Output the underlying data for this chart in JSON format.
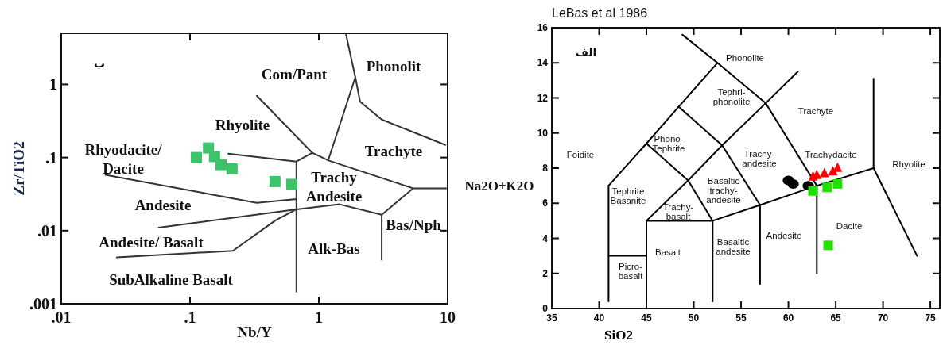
{
  "chart_data": [
    {
      "type": "scatter",
      "xlabel": "Nb/Y",
      "ylabel": "Zr/TiO2",
      "log": "xy",
      "xlim": [
        0.01,
        10
      ],
      "ylim": [
        0.001,
        5
      ],
      "xticks": [
        {
          "value": 0.01,
          "label": ".01"
        },
        {
          "value": 0.1,
          "label": ".1"
        },
        1,
        10
      ],
      "yticks": [
        {
          "value": 0.001,
          "label": ".001"
        },
        {
          "value": 0.01,
          "label": ".01"
        },
        {
          "value": 0.1,
          "label": ".1"
        },
        1
      ],
      "series": [
        {
          "type": "line",
          "color": "#333333",
          "x": [
            1.62,
            1.92,
            2.09,
            3.08,
            9.6
          ],
          "values": [
            5,
            1.25,
            0.58,
            0.33,
            0.149
          ]
        },
        {
          "type": "line",
          "color": "#333333",
          "x": [
            1.92,
            1.19
          ],
          "values": [
            1.25,
            0.095
          ]
        },
        {
          "type": "line",
          "color": "#333333",
          "x": [
            0.33,
            0.89,
            1.19,
            5.4,
            10
          ],
          "values": [
            0.7,
            0.116,
            0.091,
            0.038,
            0.038
          ]
        },
        {
          "type": "line",
          "color": "#333333",
          "x": [
            5.4,
            3.08,
            3.08
          ],
          "values": [
            0.038,
            0.0165,
            0.004
          ]
        },
        {
          "type": "line",
          "color": "#333333",
          "x": [
            0.89,
            0.67,
            0.67
          ],
          "values": [
            0.116,
            0.088,
            0.00146
          ]
        },
        {
          "type": "line",
          "color": "#333333",
          "x": [
            0.198,
            0.67
          ],
          "values": [
            0.113,
            0.088
          ]
        },
        {
          "type": "line",
          "color": "#333333",
          "x": [
            0.022,
            0.33,
            0.67
          ],
          "values": [
            0.058,
            0.024,
            0.027
          ]
        },
        {
          "type": "line",
          "color": "#333333",
          "x": [
            0.057,
            0.67,
            1.45,
            3.08
          ],
          "values": [
            0.011,
            0.0196,
            0.0229,
            0.0165
          ]
        },
        {
          "type": "line",
          "color": "#333333",
          "x": [
            0.027,
            0.215,
            0.46,
            0.67
          ],
          "values": [
            0.0043,
            0.0053,
            0.0138,
            0.0196
          ]
        },
        {
          "type": "scatter",
          "color": "#3cc46a",
          "marker": "square",
          "x": [
            0.112,
            0.139,
            0.155,
            0.174,
            0.212,
            0.457,
            0.617
          ],
          "values": [
            0.1,
            0.135,
            0.103,
            0.08,
            0.07,
            0.047,
            0.043
          ]
        }
      ],
      "annotations": [
        "ب",
        "Com/Pant",
        "Phonolit",
        "Rhyolite",
        "Rhyodacite/\nDacite",
        "Trachyte",
        "Trachy\nAndesite",
        "Andesite",
        "Bas/Nph",
        "Andesite/ Basalt",
        "Alk-Bas",
        "SubAlkaline Basalt"
      ]
    },
    {
      "type": "scatter",
      "title": "LeBas et al 1986",
      "xlabel": "SiO2",
      "ylabel": "Na2O+K2O",
      "xlim": [
        35,
        76
      ],
      "ylim": [
        0,
        16
      ],
      "xticks": [
        35,
        40,
        45,
        50,
        55,
        60,
        65,
        70,
        75
      ],
      "yticks": [
        0,
        2,
        4,
        6,
        8,
        10,
        12,
        14,
        16
      ],
      "series": [
        {
          "type": "line",
          "color": "#000000",
          "x": [
            41,
            41
          ],
          "values": [
            0.4,
            7
          ]
        },
        {
          "type": "line",
          "color": "#000000",
          "x": [
            41,
            45
          ],
          "values": [
            3,
            3
          ]
        },
        {
          "type": "line",
          "color": "#000000",
          "x": [
            45,
            45
          ],
          "values": [
            0.4,
            5
          ]
        },
        {
          "type": "line",
          "color": "#000000",
          "x": [
            45,
            52,
            57,
            63,
            69
          ],
          "values": [
            5,
            5,
            5.9,
            7,
            8
          ]
        },
        {
          "type": "line",
          "color": "#000000",
          "x": [
            52,
            52
          ],
          "values": [
            0.4,
            5
          ]
        },
        {
          "type": "line",
          "color": "#000000",
          "x": [
            57,
            57
          ],
          "values": [
            1.4,
            5.9
          ]
        },
        {
          "type": "line",
          "color": "#000000",
          "x": [
            63,
            63
          ],
          "values": [
            2,
            7
          ]
        },
        {
          "type": "line",
          "color": "#000000",
          "x": [
            69,
            69
          ],
          "values": [
            8,
            13.1
          ]
        },
        {
          "type": "line",
          "color": "#000000",
          "x": [
            69,
            73.6
          ],
          "values": [
            8,
            3
          ]
        },
        {
          "type": "line",
          "color": "#000000",
          "x": [
            45,
            49.4,
            53,
            57.6,
            61
          ],
          "values": [
            5,
            7.3,
            9.3,
            11.7,
            13.5
          ]
        },
        {
          "type": "line",
          "color": "#000000",
          "x": [
            41,
            45,
            48.4,
            52.5
          ],
          "values": [
            7,
            9.4,
            11.5,
            14
          ]
        },
        {
          "type": "line",
          "color": "#000000",
          "x": [
            48.8,
            52.5,
            57.6,
            63
          ],
          "values": [
            15.6,
            14,
            11.7,
            7
          ]
        },
        {
          "type": "line",
          "color": "#000000",
          "x": [
            45,
            49.4,
            52
          ],
          "values": [
            9.4,
            7.3,
            5
          ]
        },
        {
          "type": "line",
          "color": "#000000",
          "x": [
            48.4,
            53,
            57
          ],
          "values": [
            11.5,
            9.3,
            5.9
          ]
        },
        {
          "type": "scatter",
          "color": "#000000",
          "marker": "circle",
          "x": [
            60.0,
            60.5,
            62.1
          ],
          "values": [
            7.3,
            7.1,
            7.0
          ]
        },
        {
          "type": "scatter",
          "color": "#22e000",
          "marker": "square",
          "x": [
            62.6,
            64.1,
            65.2,
            64.2
          ],
          "values": [
            6.7,
            6.9,
            7.1,
            3.6
          ]
        },
        {
          "type": "scatter",
          "color": "#ff0000",
          "marker": "triangle",
          "x": [
            62.6,
            63.0,
            63.8,
            64.7,
            65.2
          ],
          "values": [
            7.5,
            7.6,
            7.7,
            7.8,
            8.0
          ]
        }
      ],
      "annotations": [
        "الف",
        "Phonolite",
        "Tephri-\nphonolite",
        "Trachyte",
        "Phono-\nTephrite",
        "Foidite",
        "Trachy-\nandesite",
        "Trachydacite",
        "Rhyolite",
        "Basaltic\ntrachy-\nandesite",
        "Tephrite\nBasanite",
        "Trachy-\nbasalt",
        "Dacite",
        "Andesite",
        "Basaltic\nandesite",
        "Basalt",
        "Picro-\nbasalt"
      ]
    }
  ]
}
